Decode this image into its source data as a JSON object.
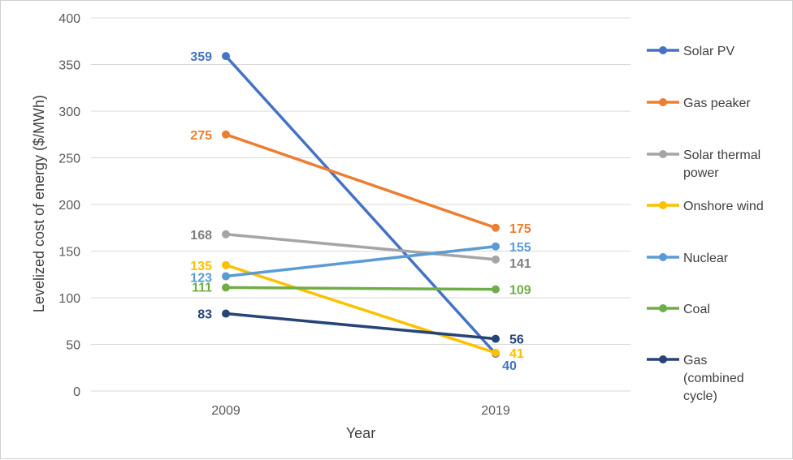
{
  "chart_data": {
    "type": "line",
    "title": "",
    "xlabel": "Year",
    "ylabel": "Levelized cost of energy ($/MWh)",
    "x": [
      "2009",
      "2019"
    ],
    "ylim": [
      0,
      400
    ],
    "yticks": [
      0,
      50,
      100,
      150,
      200,
      250,
      300,
      350,
      400
    ],
    "grid": true,
    "legend_position": "right",
    "series": [
      {
        "name": "Solar PV",
        "name_lines": [
          "Solar PV"
        ],
        "color": "#4472C4",
        "values": [
          359,
          40
        ]
      },
      {
        "name": "Gas peaker",
        "name_lines": [
          "Gas peaker"
        ],
        "color": "#ED7D31",
        "values": [
          275,
          175
        ]
      },
      {
        "name": "Solar thermal power",
        "name_lines": [
          "Solar thermal",
          "power"
        ],
        "color": "#A5A5A5",
        "values": [
          168,
          141
        ]
      },
      {
        "name": "Onshore wind",
        "name_lines": [
          "Onshore wind"
        ],
        "color": "#FFC000",
        "values": [
          135,
          41
        ]
      },
      {
        "name": "Nuclear",
        "name_lines": [
          "Nuclear"
        ],
        "color": "#5B9BD5",
        "values": [
          123,
          155
        ]
      },
      {
        "name": "Coal",
        "name_lines": [
          "Coal"
        ],
        "color": "#70AD47",
        "values": [
          111,
          109
        ]
      },
      {
        "name": "Gas (combined cycle)",
        "name_lines": [
          "Gas",
          "(combined",
          "cycle)"
        ],
        "color": "#264478",
        "values": [
          83,
          56
        ]
      }
    ],
    "label_colors": {
      "Solar PV": "#4472C4",
      "Gas peaker": "#ED7D31",
      "Solar thermal power": "#7F7F7F",
      "Onshore wind": "#FFC000",
      "Nuclear": "#5B9BD5",
      "Coal": "#70AD47",
      "Gas (combined cycle)": "#264478"
    }
  }
}
